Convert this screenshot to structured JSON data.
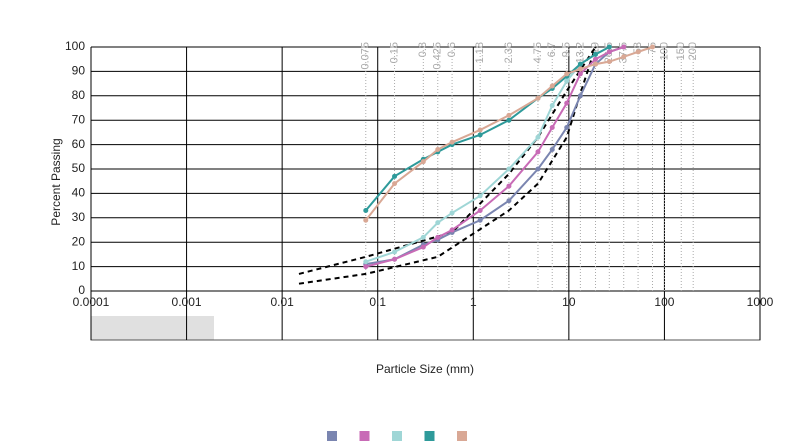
{
  "chart_data": {
    "type": "line",
    "x_scale": "log",
    "xlabel": "Particle Size (mm)",
    "ylabel": "Percent Passing",
    "xlim": [
      0.0001,
      1000
    ],
    "ylim": [
      0,
      100
    ],
    "xticks": [
      0.0001,
      0.001,
      0.01,
      0.1,
      1,
      10,
      100,
      1000
    ],
    "yticks": [
      0,
      10,
      20,
      30,
      40,
      50,
      60,
      70,
      80,
      90,
      100
    ],
    "grid": true,
    "sieves": [
      0.075,
      0.15,
      0.3,
      0.425,
      0.6,
      1.18,
      2.36,
      4.75,
      6.7,
      9.5,
      13.2,
      19,
      26.5,
      37.5,
      53,
      75,
      100,
      150,
      200
    ],
    "series": [
      {
        "color": "#7a85b0",
        "x": [
          0.075,
          0.15,
          0.3,
          0.425,
          0.6,
          1.18,
          2.36,
          4.75,
          6.7,
          9.5,
          13.2,
          19,
          26.5,
          37.5
        ],
        "values": [
          11,
          13,
          19,
          21,
          24,
          29,
          37,
          50,
          58,
          67,
          80,
          93,
          98,
          100
        ]
      },
      {
        "color": "#c86bb6",
        "x": [
          0.075,
          0.15,
          0.3,
          0.425,
          0.6,
          1.18,
          2.36,
          4.75,
          6.7,
          9.5,
          13.2,
          19,
          26.5,
          37.5
        ],
        "values": [
          10,
          13,
          18,
          22,
          25,
          33,
          43,
          57,
          67,
          77,
          89,
          95,
          98,
          100
        ]
      },
      {
        "color": "#9fd6d6",
        "x": [
          0.075,
          0.15,
          0.3,
          0.425,
          0.6,
          1.18,
          2.36,
          4.75,
          6.7,
          9.5,
          13.2,
          19,
          26.5
        ],
        "values": [
          12,
          16,
          22,
          28,
          32,
          39,
          50,
          63,
          76,
          86,
          93,
          97,
          100
        ]
      },
      {
        "color": "#2e9a9a",
        "x": [
          0.075,
          0.15,
          0.3,
          0.425,
          0.6,
          1.18,
          2.36,
          4.75,
          6.7,
          9.5,
          13.2,
          19,
          26.5
        ],
        "values": [
          33,
          47,
          54,
          57,
          60,
          64,
          70,
          79,
          83,
          88,
          93,
          97,
          100
        ]
      },
      {
        "color": "#d9a895",
        "x": [
          0.075,
          0.15,
          0.3,
          0.425,
          0.6,
          1.18,
          2.36,
          4.75,
          6.7,
          9.5,
          13.2,
          19,
          26.5,
          37.5,
          53,
          75
        ],
        "values": [
          29,
          44,
          53,
          58,
          61,
          66,
          72,
          79,
          84,
          89,
          91,
          93,
          94,
          96,
          98,
          100
        ]
      }
    ],
    "envelopes": [
      {
        "color": "#000000",
        "line_style": "dashed",
        "x": [
          0.015,
          0.075,
          0.6,
          2.36,
          4.75,
          9.5,
          19
        ],
        "values": [
          7,
          14,
          24,
          48,
          63,
          82,
          100
        ]
      },
      {
        "color": "#000000",
        "line_style": "dashed",
        "x": [
          0.015,
          0.075,
          0.425,
          2.36,
          4.75,
          9.5,
          13.2,
          19
        ],
        "values": [
          3,
          7,
          14,
          33,
          44,
          63,
          81,
          100
        ]
      }
    ]
  }
}
